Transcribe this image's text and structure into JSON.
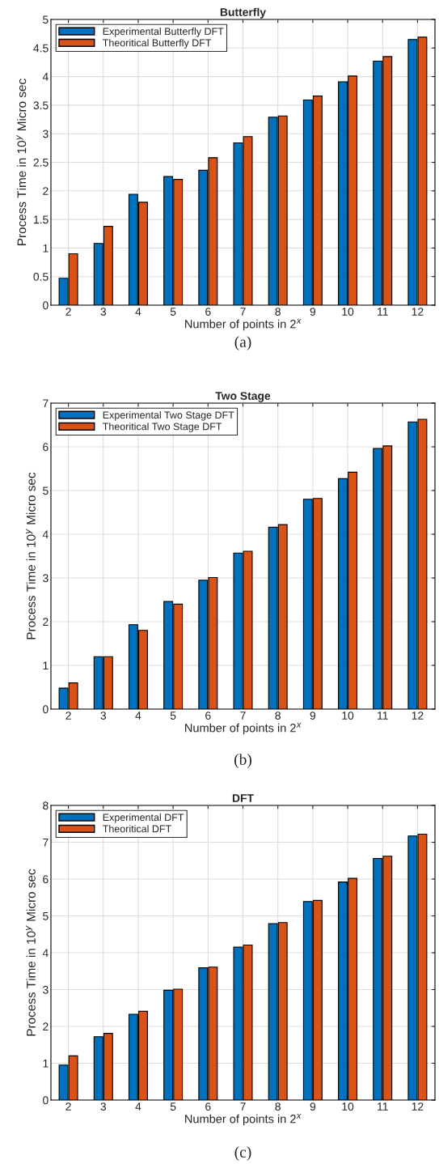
{
  "chart_data": [
    {
      "type": "bar",
      "title": "Butterfly",
      "xlabel": "Number of points in 2$^{x}$",
      "ylabel": "Process Time in 10$^{y}$ Micro sec",
      "categories": [
        "2",
        "3",
        "4",
        "5",
        "6",
        "7",
        "8",
        "9",
        "10",
        "11",
        "12"
      ],
      "series": [
        {
          "name": "Experimental Butterfly DFT",
          "color": "#0072bd",
          "values": [
            0.47,
            1.08,
            1.94,
            2.25,
            2.36,
            2.84,
            3.29,
            3.59,
            3.91,
            4.27,
            4.65
          ]
        },
        {
          "name": "Theoritical Butterfly DFT",
          "color": "#d95319",
          "values": [
            0.9,
            1.38,
            1.8,
            2.2,
            2.58,
            2.95,
            3.31,
            3.66,
            4.01,
            4.35,
            4.69
          ]
        }
      ],
      "ylim": [
        0,
        5
      ],
      "yticks": [
        0,
        0.5,
        1,
        1.5,
        2,
        2.5,
        3,
        3.5,
        4,
        4.5,
        5
      ],
      "grid": true,
      "legend": "top left",
      "annotations": [
        "(a)"
      ]
    },
    {
      "type": "bar",
      "title": "Two Stage",
      "xlabel": "Number of points in 2$^{x}$",
      "ylabel": "Process Time in 10$^{y}$ Micro sec",
      "categories": [
        "2",
        "3",
        "4",
        "5",
        "6",
        "7",
        "8",
        "9",
        "10",
        "11",
        "12"
      ],
      "series": [
        {
          "name": "Experimental Two Stage DFT",
          "color": "#0072bd",
          "values": [
            0.48,
            1.2,
            1.93,
            2.46,
            2.95,
            3.57,
            4.16,
            4.8,
            5.27,
            5.96,
            6.57
          ]
        },
        {
          "name": "Theoritical Two Stage DFT",
          "color": "#d95319",
          "values": [
            0.6,
            1.2,
            1.8,
            2.4,
            3.01,
            3.61,
            4.22,
            4.82,
            5.42,
            6.02,
            6.63
          ]
        }
      ],
      "ylim": [
        0,
        7
      ],
      "yticks": [
        0,
        1,
        2,
        3,
        4,
        5,
        6,
        7
      ],
      "grid": true,
      "legend": "top left",
      "annotations": [
        "(b)"
      ]
    },
    {
      "type": "bar",
      "title": "DFT",
      "xlabel": "Number of points in 2$^{x}$",
      "ylabel": "Process Time in 10$^{y}$ Micro sec",
      "categories": [
        "2",
        "3",
        "4",
        "5",
        "6",
        "7",
        "8",
        "9",
        "10",
        "11",
        "12"
      ],
      "series": [
        {
          "name": "Experimental DFT",
          "color": "#0072bd",
          "values": [
            0.95,
            1.72,
            2.33,
            2.98,
            3.59,
            4.15,
            4.79,
            5.39,
            5.92,
            6.56,
            7.17
          ]
        },
        {
          "name": "Theoritical DFT",
          "color": "#d95319",
          "values": [
            1.2,
            1.81,
            2.41,
            3.01,
            3.61,
            4.21,
            4.82,
            5.42,
            6.02,
            6.62,
            7.22
          ]
        }
      ],
      "ylim": [
        0,
        8
      ],
      "yticks": [
        0,
        1,
        2,
        3,
        4,
        5,
        6,
        7,
        8
      ],
      "grid": true,
      "legend": "top left",
      "annotations": [
        "(c)"
      ]
    }
  ]
}
